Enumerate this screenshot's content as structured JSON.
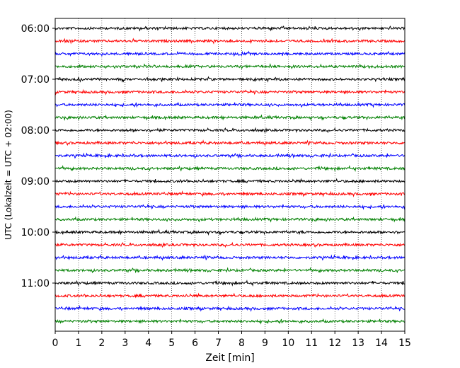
{
  "chart_data": {
    "type": "line",
    "title": "",
    "xlabel": "Zeit  [min]",
    "ylabel": "UTC (Lokalzeit = UTC + 02:00)",
    "xlim": [
      0,
      15
    ],
    "x_ticks": [
      "0",
      "1",
      "2",
      "3",
      "4",
      "5",
      "6",
      "7",
      "8",
      "9",
      "10",
      "11",
      "12",
      "13",
      "14",
      "15"
    ],
    "y_ticks": [
      "06:00",
      "07:00",
      "08:00",
      "09:00",
      "10:00",
      "11:00"
    ],
    "grid": "vertical dotted",
    "row_interval_minutes": 15,
    "rows_start": "06:00",
    "row_count": 24,
    "colors": [
      "#000000",
      "#ff0000",
      "#0000ff",
      "#008000"
    ]
  }
}
